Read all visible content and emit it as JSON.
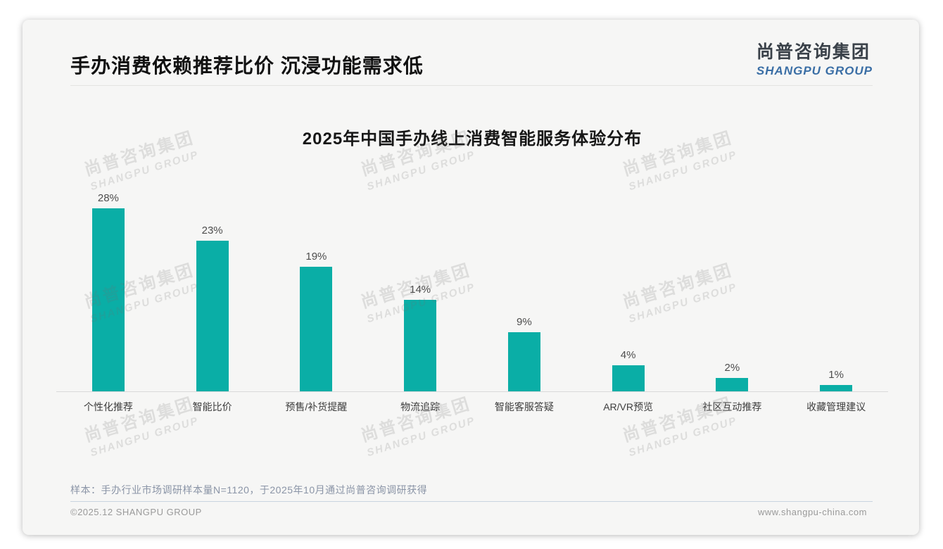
{
  "page": {
    "title": "手办消费依赖推荐比价 沉浸功能需求低",
    "logo": {
      "cn": "尚普咨询集团",
      "en": "SHANGPU GROUP"
    },
    "watermark": {
      "cn": "尚普咨询集团",
      "en": "SHANGPU GROUP"
    },
    "note": "样本：手办行业市场调研样本量N=1120，于2025年10月通过尚普咨询调研获得",
    "footer": {
      "copyright": "©2025.12 SHANGPU GROUP",
      "website": "www.shangpu-china.com"
    },
    "colors": {
      "bar": "#0aaea6",
      "logo_blue": "#3a6ea5",
      "title_black": "#111111",
      "note_gray_blue": "#8a94a6"
    }
  },
  "chart_data": {
    "type": "bar",
    "title": "2025年中国手办线上消费智能服务体验分布",
    "categories": [
      "个性化推荐",
      "智能比价",
      "预售/补货提醒",
      "物流追踪",
      "智能客服答疑",
      "AR/VR预览",
      "社区互动推荐",
      "收藏管理建议"
    ],
    "values": [
      28,
      23,
      19,
      14,
      9,
      4,
      2,
      1
    ],
    "data_labels": [
      "28%",
      "23%",
      "19%",
      "14%",
      "9%",
      "4%",
      "2%",
      "1%"
    ],
    "unit": "%",
    "bar_color": "#0aaea6",
    "ylim": [
      0,
      30
    ],
    "grid": false,
    "legend": false,
    "xlabel": "",
    "ylabel": ""
  }
}
